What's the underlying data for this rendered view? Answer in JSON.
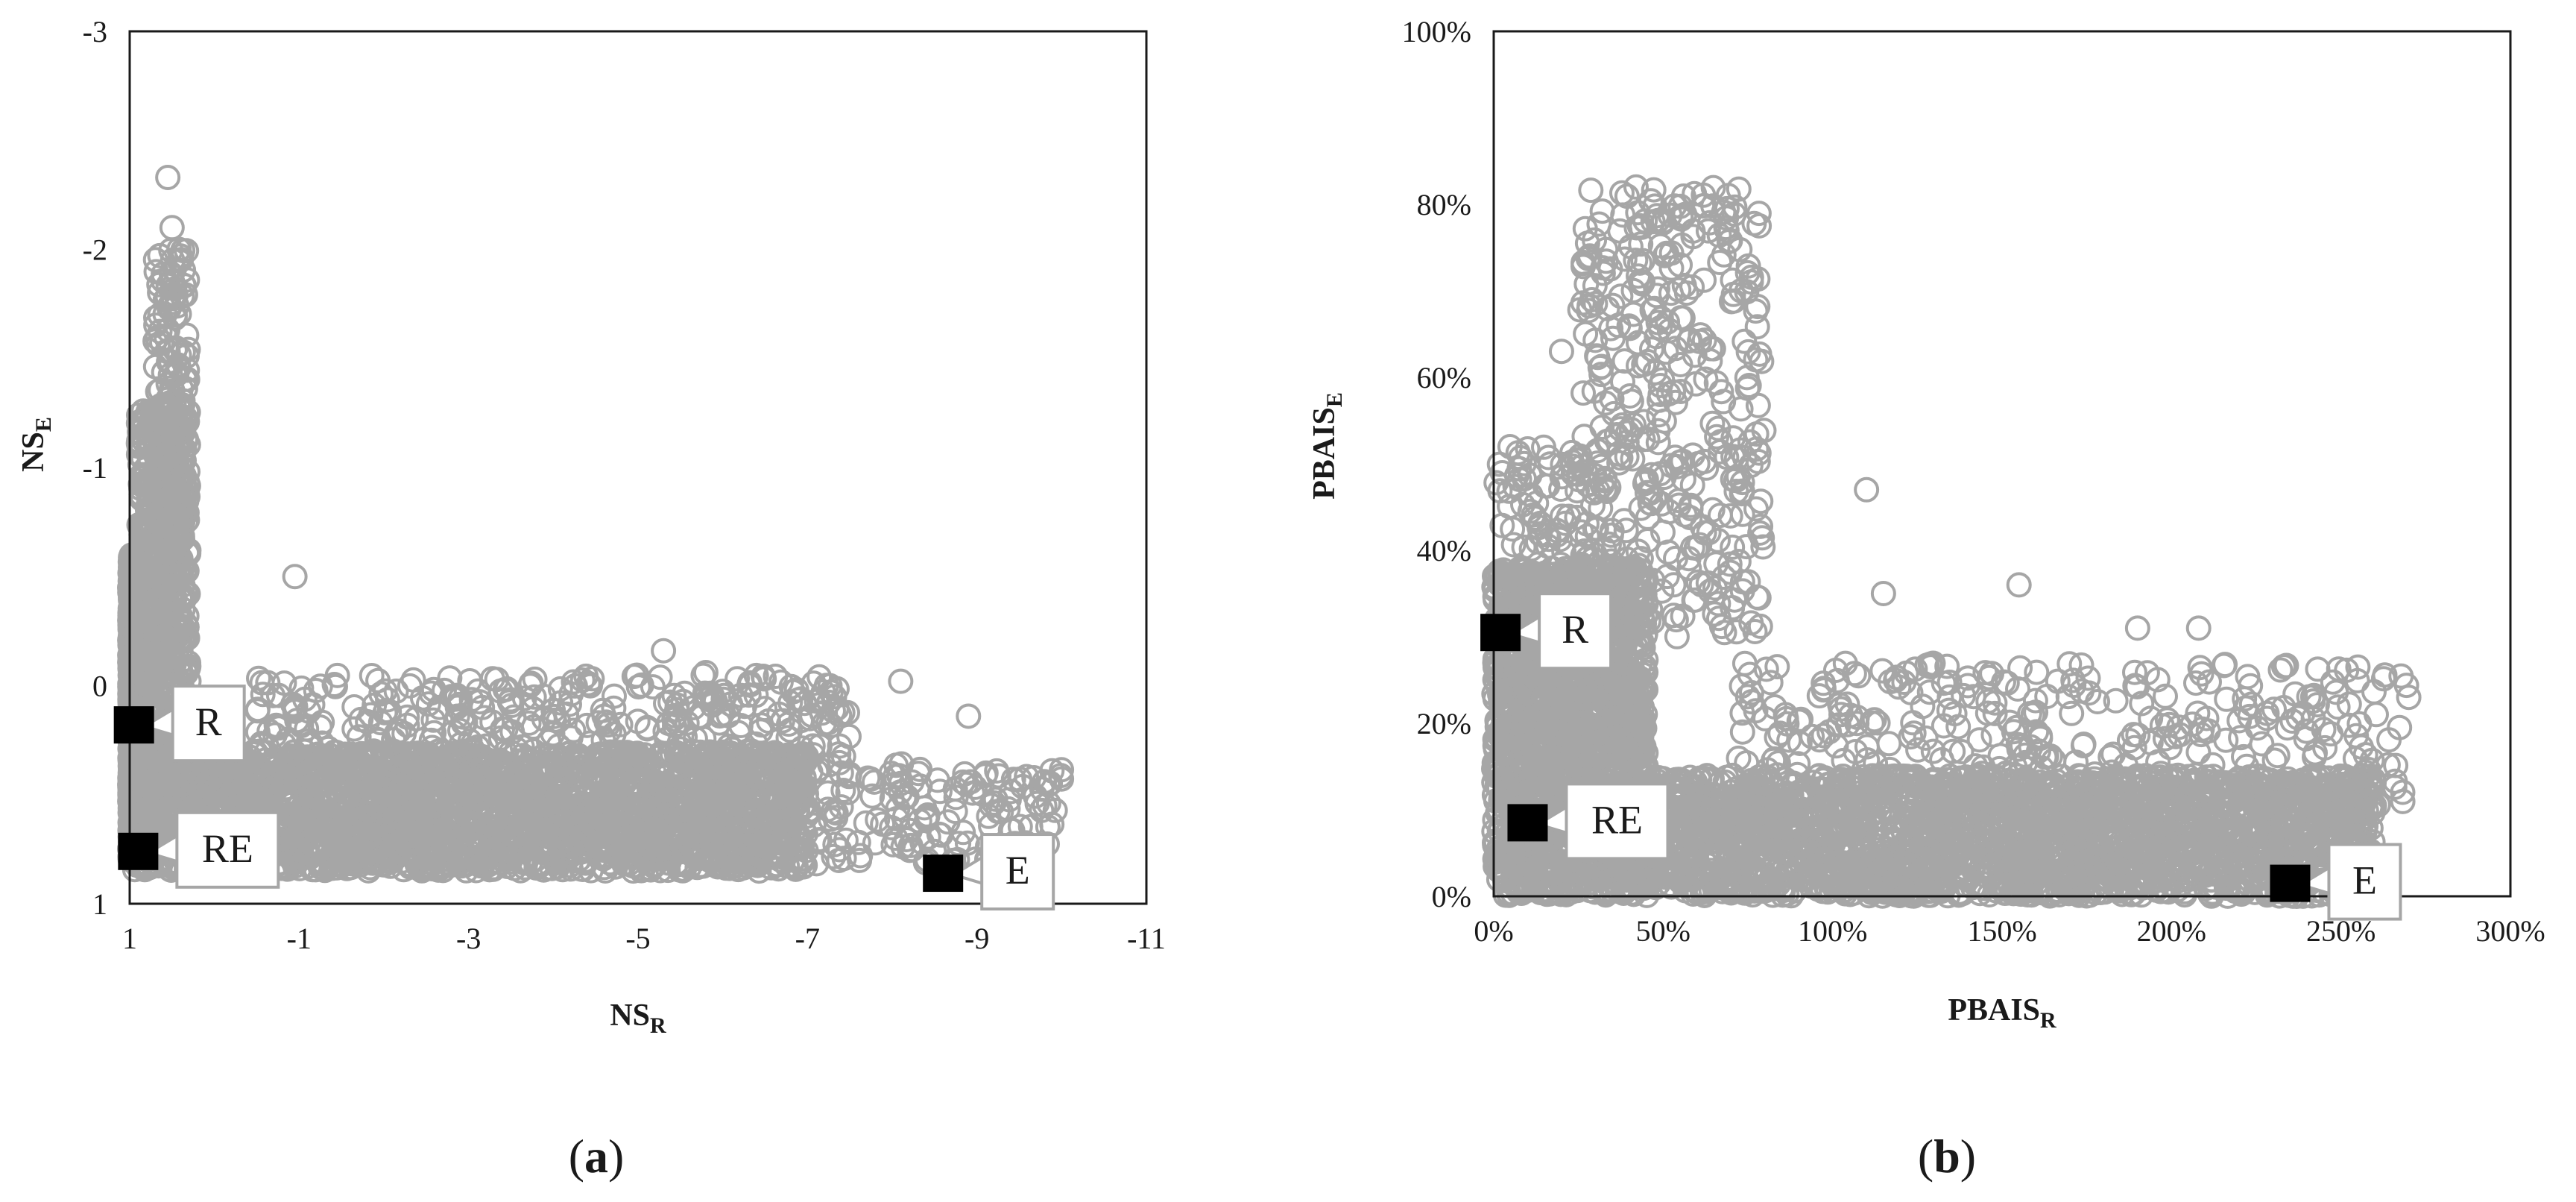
{
  "figure": {
    "panels": [
      {
        "panel_label": {
          "open": "(",
          "letter": "a",
          "close": ")"
        },
        "xlabel": {
          "main": "NS",
          "sub": "R"
        },
        "ylabel": {
          "main": "NS",
          "sub": "E"
        },
        "xticks": [
          "1",
          "-1",
          "-3",
          "-5",
          "-7",
          "-9",
          "-11"
        ],
        "yticks": [
          "-3",
          "-2",
          "-1",
          "0",
          "1"
        ],
        "callouts": [
          "R",
          "RE",
          "E"
        ]
      },
      {
        "panel_label": {
          "open": "(",
          "letter": "b",
          "close": ")"
        },
        "xlabel": {
          "main": "PBAIS",
          "sub": "R"
        },
        "ylabel": {
          "main": "PBAIS",
          "sub": "E"
        },
        "xticks": [
          "0%",
          "50%",
          "100%",
          "150%",
          "200%",
          "250%",
          "300%"
        ],
        "yticks": [
          "100%",
          "80%",
          "60%",
          "40%",
          "20%",
          "0%"
        ],
        "callouts": [
          "R",
          "RE",
          "E"
        ]
      }
    ]
  },
  "chart_data": [
    {
      "type": "scatter",
      "title": "",
      "xlabel": "NS_R",
      "ylabel": "NS_E",
      "xlim": [
        1,
        -11
      ],
      "ylim": [
        1,
        -3
      ],
      "x_reversed": true,
      "y_reversed": true,
      "grid": false,
      "marker": "hollow-circle",
      "marker_color": "#a6a6a6",
      "highlight_color": "#000000",
      "highlighted_points": [
        {
          "label": "R",
          "x": 0.95,
          "y": 0.18
        },
        {
          "label": "RE",
          "x": 0.9,
          "y": 0.76
        },
        {
          "label": "E",
          "x": -8.6,
          "y": 0.86
        }
      ],
      "notable_points": [
        {
          "x": 0.55,
          "y": -2.33
        },
        {
          "x": 0.5,
          "y": -2.1
        },
        {
          "x": 0.4,
          "y": -1.97
        },
        {
          "x": 0.7,
          "y": -1.58
        },
        {
          "x": -0.95,
          "y": -0.5
        },
        {
          "x": -5.3,
          "y": -0.16
        },
        {
          "x": -5.8,
          "y": -0.06
        },
        {
          "x": -8.1,
          "y": -0.02
        },
        {
          "x": -8.9,
          "y": 0.14
        },
        {
          "x": -9.8,
          "y": 0.55
        },
        {
          "x": -7.4,
          "y": 0.4
        },
        {
          "x": -2.8,
          "y": 0.05
        }
      ],
      "density_regions": [
        {
          "x": [
            0.9,
            1.0
          ],
          "y": [
            -0.6,
            0.8
          ],
          "count": 900
        },
        {
          "x": [
            0.3,
            0.9
          ],
          "y": [
            -1.3,
            0.5
          ],
          "count": 700
        },
        {
          "x": [
            0.3,
            0.7
          ],
          "y": [
            -2.0,
            -1.2
          ],
          "count": 90
        },
        {
          "x": [
            -7.0,
            1.0
          ],
          "y": [
            0.3,
            0.85
          ],
          "count": 2600
        },
        {
          "x": [
            -10.0,
            -7.0
          ],
          "y": [
            0.35,
            0.82
          ],
          "count": 150
        },
        {
          "x": [
            -7.5,
            -0.5
          ],
          "y": [
            -0.05,
            0.35
          ],
          "count": 320
        }
      ]
    },
    {
      "type": "scatter",
      "title": "",
      "xlabel": "PBAIS_R",
      "ylabel": "PBAIS_E",
      "xlim": [
        0,
        3
      ],
      "ylim": [
        0,
        1
      ],
      "value_format": "percent",
      "grid": false,
      "marker": "hollow-circle",
      "marker_color": "#a6a6a6",
      "highlight_color": "#000000",
      "highlighted_points": [
        {
          "label": "R",
          "x": 0.02,
          "y": 0.305
        },
        {
          "label": "RE",
          "x": 0.1,
          "y": 0.085
        },
        {
          "label": "E",
          "x": 2.35,
          "y": 0.015
        }
      ],
      "notable_points": [
        {
          "x": 0.42,
          "y": 0.82
        },
        {
          "x": 0.47,
          "y": 0.78
        },
        {
          "x": 0.3,
          "y": 0.685
        },
        {
          "x": 0.55,
          "y": 0.73
        },
        {
          "x": 0.2,
          "y": 0.63
        },
        {
          "x": 1.1,
          "y": 0.47
        },
        {
          "x": 1.15,
          "y": 0.35
        },
        {
          "x": 1.55,
          "y": 0.36
        },
        {
          "x": 1.9,
          "y": 0.31
        },
        {
          "x": 2.08,
          "y": 0.31
        },
        {
          "x": 2.7,
          "y": 0.23
        },
        {
          "x": 2.55,
          "y": 0.265
        }
      ],
      "density_regions": [
        {
          "x": [
            0.0,
            0.45
          ],
          "y": [
            0.0,
            0.38
          ],
          "count": 1700
        },
        {
          "x": [
            0.25,
            0.8
          ],
          "y": [
            0.3,
            0.82
          ],
          "count": 380
        },
        {
          "x": [
            0.0,
            0.35
          ],
          "y": [
            0.3,
            0.52
          ],
          "count": 120
        },
        {
          "x": [
            0.4,
            2.6
          ],
          "y": [
            0.0,
            0.14
          ],
          "count": 2400
        },
        {
          "x": [
            0.7,
            2.7
          ],
          "y": [
            0.1,
            0.27
          ],
          "count": 360
        }
      ]
    }
  ]
}
